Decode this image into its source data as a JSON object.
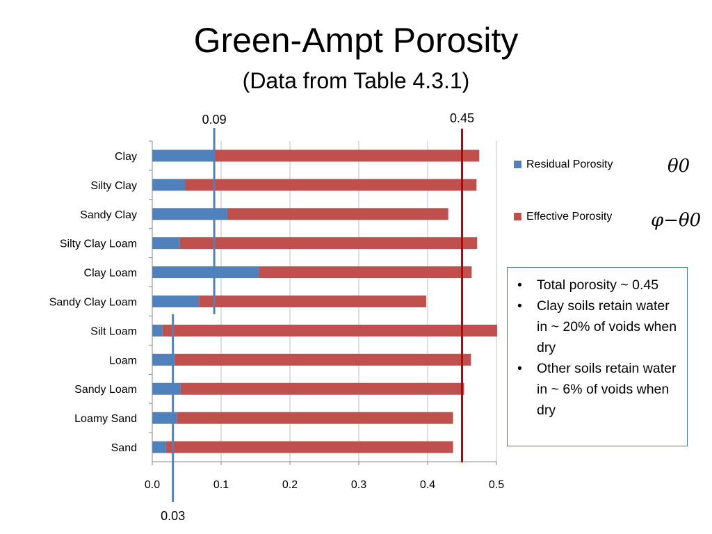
{
  "chart_data": {
    "type": "bar",
    "orientation": "horizontal",
    "stacked": true,
    "title": "Green-Ampt Porosity",
    "subtitle": "(Data from Table 4.3.1)",
    "categories": [
      "Clay",
      "Silty Clay",
      "Sandy Clay",
      "Silty Clay Loam",
      "Clay Loam",
      "Sandy Clay Loam",
      "Silt Loam",
      "Loam",
      "Sandy Loam",
      "Loamy Sand",
      "Sand"
    ],
    "series": [
      {
        "name": "Residual Porosity",
        "color": "#4f81bd",
        "values": [
          0.09,
          0.048,
          0.109,
          0.04,
          0.155,
          0.068,
          0.015,
          0.033,
          0.041,
          0.036,
          0.02
        ]
      },
      {
        "name": "Effective Porosity",
        "color": "#c0504d",
        "values": [
          0.385,
          0.423,
          0.321,
          0.432,
          0.309,
          0.33,
          0.486,
          0.43,
          0.412,
          0.401,
          0.417
        ]
      }
    ],
    "xlim": [
      0,
      0.5
    ],
    "x_ticks": [
      "0.0",
      "0.1",
      "0.2",
      "0.3",
      "0.4",
      "0.5"
    ],
    "grid": true,
    "legend_position": "right",
    "legend_symbols": [
      "θ0",
      "φ−θ0"
    ],
    "reference_lines": [
      {
        "value": 0.09,
        "label": "0.09",
        "color": "#4f81bd",
        "span": "top"
      },
      {
        "value": 0.45,
        "label": "0.45",
        "color": "#c00000",
        "span": "full"
      },
      {
        "value": 0.03,
        "label": "0.03",
        "color": "#4f81bd",
        "span": "bottom"
      }
    ]
  },
  "notes": [
    "Total porosity ~ 0.45",
    "Clay soils retain water in ~ 20% of voids when dry",
    "Other soils retain water in ~ 6% of voids when dry"
  ]
}
